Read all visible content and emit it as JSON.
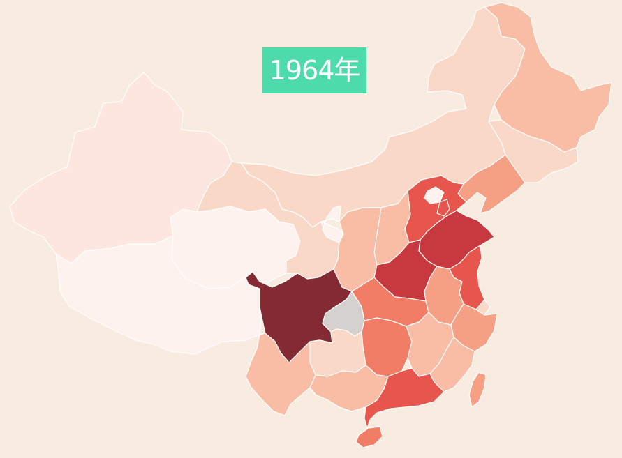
{
  "year_label": "1964年",
  "palette": {
    "background": "#f8ece1",
    "badge": "#4ddbac",
    "no_data": "#d4d1cf",
    "scale": [
      "#fdf2ed",
      "#fce6dd",
      "#fad8c8",
      "#f8bda4",
      "#f59f84",
      "#f27d66",
      "#e6564d",
      "#c8393f",
      "#842a32"
    ]
  },
  "provinces": [
    {
      "id": "xinjiang",
      "level": 1
    },
    {
      "id": "tibet",
      "level": 0
    },
    {
      "id": "qinghai",
      "level": 0
    },
    {
      "id": "gansu",
      "level": 2
    },
    {
      "id": "inner-mongolia",
      "level": 2
    },
    {
      "id": "ningxia",
      "level": 0
    },
    {
      "id": "heilongjiang",
      "level": 3
    },
    {
      "id": "jilin",
      "level": 2
    },
    {
      "id": "liaoning",
      "level": 4
    },
    {
      "id": "hebei",
      "level": 6
    },
    {
      "id": "beijing",
      "level": 0
    },
    {
      "id": "tianjin",
      "level": 6
    },
    {
      "id": "shanxi",
      "level": 3
    },
    {
      "id": "shaanxi",
      "level": 3
    },
    {
      "id": "shandong",
      "level": 7
    },
    {
      "id": "henan",
      "level": 7
    },
    {
      "id": "jiangsu",
      "level": 6
    },
    {
      "id": "anhui",
      "level": 4
    },
    {
      "id": "shanghai",
      "level": 2
    },
    {
      "id": "zhejiang",
      "level": 4
    },
    {
      "id": "hubei",
      "level": 5
    },
    {
      "id": "hunan",
      "level": 5
    },
    {
      "id": "jiangxi",
      "level": 3
    },
    {
      "id": "fujian",
      "level": 3
    },
    {
      "id": "sichuan",
      "level": 8
    },
    {
      "id": "chongqing",
      "level": -1
    },
    {
      "id": "guizhou",
      "level": 2
    },
    {
      "id": "yunnan",
      "level": 3
    },
    {
      "id": "guangxi",
      "level": 3
    },
    {
      "id": "guangdong",
      "level": 6
    },
    {
      "id": "hainan",
      "level": 5
    },
    {
      "id": "taiwan",
      "level": 4
    }
  ]
}
